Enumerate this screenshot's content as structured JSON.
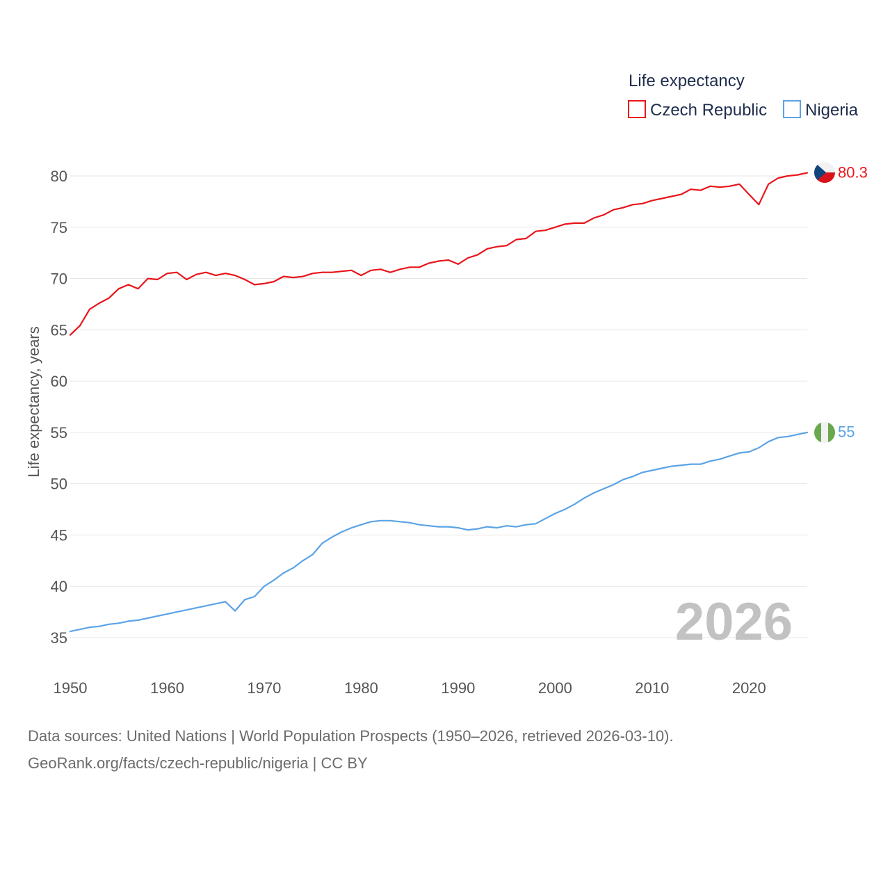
{
  "chart_data": {
    "type": "line",
    "legend_title": "Life expectancy",
    "ylabel": "Life expectancy, years",
    "xlabel": "",
    "xlim": [
      1950,
      2026
    ],
    "ylim": [
      32,
      82
    ],
    "x_ticks": [
      1950,
      1960,
      1970,
      1980,
      1990,
      2000,
      2010,
      2020
    ],
    "y_ticks": [
      35,
      40,
      45,
      50,
      55,
      60,
      65,
      70,
      75,
      80
    ],
    "current_year": "2026",
    "legend_placement": "top-right",
    "grid": true,
    "x": [
      1950,
      1951,
      1952,
      1953,
      1954,
      1955,
      1956,
      1957,
      1958,
      1959,
      1960,
      1961,
      1962,
      1963,
      1964,
      1965,
      1966,
      1967,
      1968,
      1969,
      1970,
      1971,
      1972,
      1973,
      1974,
      1975,
      1976,
      1977,
      1978,
      1979,
      1980,
      1981,
      1982,
      1983,
      1984,
      1985,
      1986,
      1987,
      1988,
      1989,
      1990,
      1991,
      1992,
      1993,
      1994,
      1995,
      1996,
      1997,
      1998,
      1999,
      2000,
      2001,
      2002,
      2003,
      2004,
      2005,
      2006,
      2007,
      2008,
      2009,
      2010,
      2011,
      2012,
      2013,
      2014,
      2015,
      2016,
      2017,
      2018,
      2019,
      2020,
      2021,
      2022,
      2023,
      2024,
      2025,
      2026
    ],
    "series": [
      {
        "name": "Czech Republic",
        "color": "#e8151b",
        "end_label": "80.3",
        "flag": "czech-flag-icon",
        "values": [
          64.5,
          65.4,
          67.0,
          67.6,
          68.1,
          69.0,
          69.4,
          69.0,
          70.0,
          69.9,
          70.5,
          70.6,
          69.9,
          70.4,
          70.6,
          70.3,
          70.5,
          70.3,
          69.9,
          69.4,
          69.5,
          69.7,
          70.2,
          70.1,
          70.2,
          70.5,
          70.6,
          70.6,
          70.7,
          70.8,
          70.3,
          70.8,
          70.9,
          70.6,
          70.9,
          71.1,
          71.1,
          71.5,
          71.7,
          71.8,
          71.4,
          72.0,
          72.3,
          72.9,
          73.1,
          73.2,
          73.8,
          73.9,
          74.6,
          74.7,
          75.0,
          75.3,
          75.4,
          75.4,
          75.9,
          76.2,
          76.7,
          76.9,
          77.2,
          77.3,
          77.6,
          77.8,
          78.0,
          78.2,
          78.7,
          78.6,
          79.0,
          78.9,
          79.0,
          79.2,
          78.2,
          77.2,
          79.2,
          79.8,
          80.0,
          80.1,
          80.3
        ]
      },
      {
        "name": "Nigeria",
        "color": "#5ba3e6",
        "end_label": "55",
        "flag": "nigeria-flag-icon",
        "values": [
          35.6,
          35.8,
          36.0,
          36.1,
          36.3,
          36.4,
          36.6,
          36.7,
          36.9,
          37.1,
          37.3,
          37.5,
          37.7,
          37.9,
          38.1,
          38.3,
          38.5,
          37.6,
          38.7,
          39.0,
          40.0,
          40.6,
          41.3,
          41.8,
          42.5,
          43.1,
          44.2,
          44.8,
          45.3,
          45.7,
          46.0,
          46.3,
          46.4,
          46.4,
          46.3,
          46.2,
          46.0,
          45.9,
          45.8,
          45.8,
          45.7,
          45.5,
          45.6,
          45.8,
          45.7,
          45.9,
          45.8,
          46.0,
          46.1,
          46.6,
          47.1,
          47.5,
          48.0,
          48.6,
          49.1,
          49.5,
          49.9,
          50.4,
          50.7,
          51.1,
          51.3,
          51.5,
          51.7,
          51.8,
          51.9,
          51.9,
          52.2,
          52.4,
          52.7,
          53.0,
          53.1,
          53.5,
          54.1,
          54.5,
          54.6,
          54.8,
          55.0
        ]
      }
    ]
  },
  "footer": {
    "line1": "Data sources: United Nations | World Population Prospects (1950–2026, retrieved 2026-03-10).",
    "line2": "GeoRank.org/facts/czech-republic/nigeria | CC BY"
  }
}
